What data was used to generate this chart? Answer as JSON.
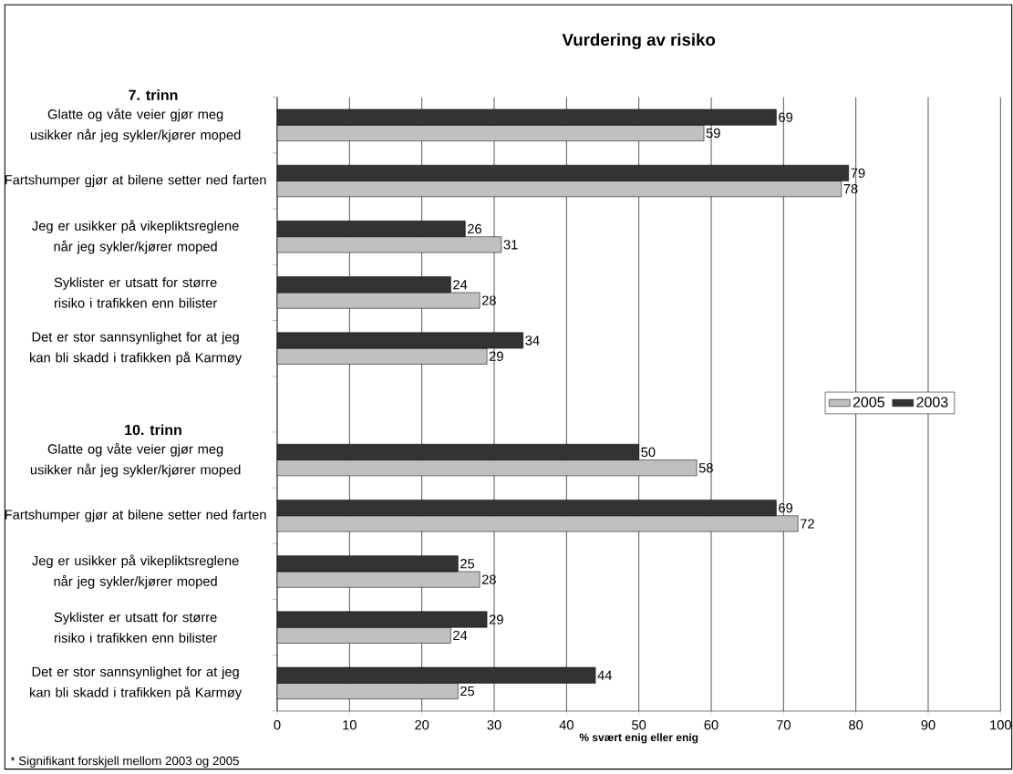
{
  "chart_data": {
    "type": "bar",
    "orientation": "horizontal",
    "title": "Vurdering av risiko",
    "categories": [
      "Glatte og våte veier gjør meg usikker når jeg sykler/kjører moped",
      "Fartshumper gjør at bilene setter ned farten",
      "Jeg er usikker på vikepliktsreglene når jeg sykler/kjører moped",
      "Syklister er utsatt for større risiko i trafikken enn bilister",
      "Det er stor sannsynlighet for at jeg kan bli skadd i trafikken på Karmøy",
      null,
      "Glatte og våte veier gjør meg usikker når jeg sykler/kjører moped",
      "Fartshumper gjør at bilene setter ned farten",
      "Jeg er usikker på vikepliktsreglene når jeg sykler/kjører moped",
      "Syklister er utsatt for større risiko i trafikken enn bilister",
      "Det er stor sannsynlighet for at jeg kan bli skadd i trafikken på Karmøy"
    ],
    "series": [
      {
        "name": "2005",
        "color": "#c0c0c0",
        "values": [
          59,
          78,
          31,
          28,
          29,
          null,
          58,
          72,
          28,
          24,
          25
        ]
      },
      {
        "name": "2003",
        "color": "#333333",
        "values": [
          69,
          79,
          26,
          24,
          34,
          null,
          50,
          69,
          25,
          29,
          44
        ]
      }
    ],
    "xlim": [
      0,
      100
    ],
    "xticks": [
      0,
      10,
      20,
      30,
      40,
      50,
      60,
      70,
      80,
      90,
      100
    ],
    "xlabel": "% svært enig eller enig",
    "grid": "x",
    "legend": "right",
    "data_labels": true,
    "annotations": [
      "7. trinn",
      "10. trinn",
      "* Signifikant forskjell mellom 2003 og 2005"
    ]
  }
}
